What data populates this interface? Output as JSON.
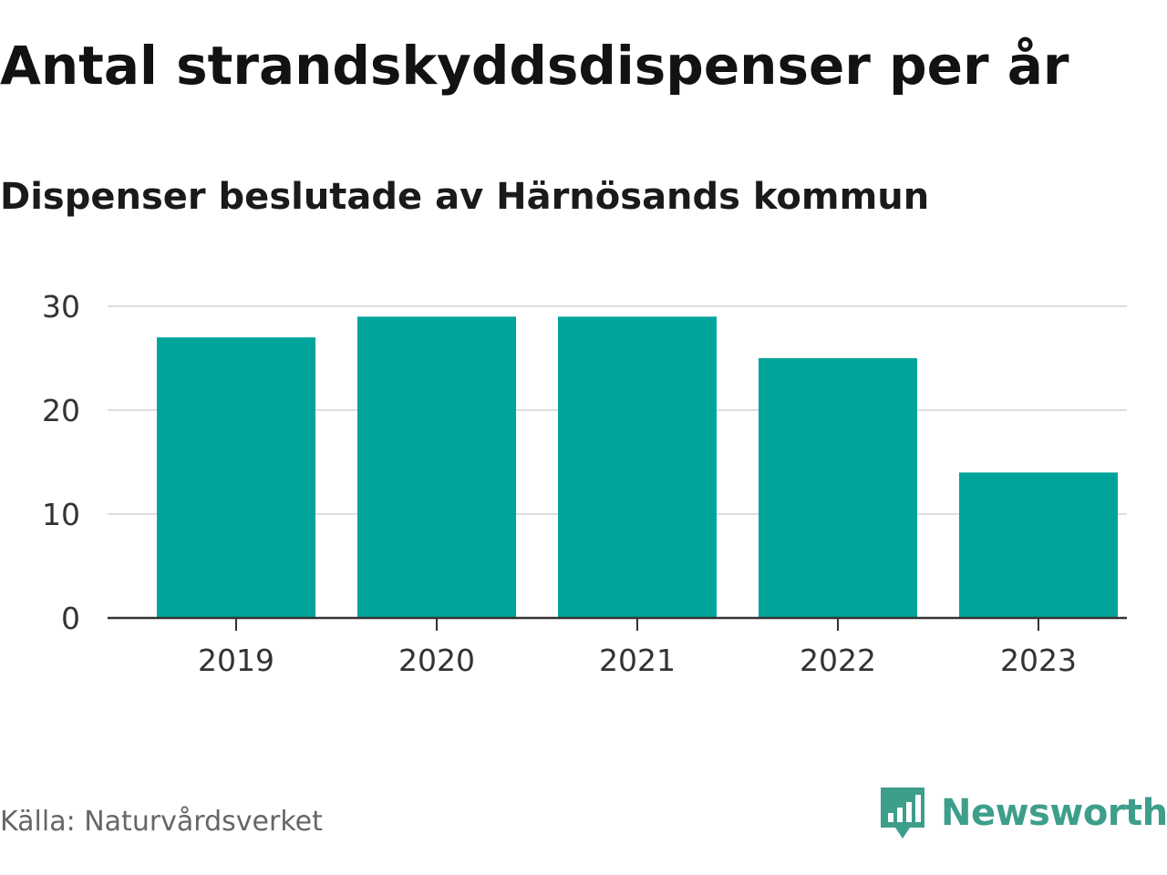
{
  "header": {
    "title": "Antal strandskyddsdispenser per år",
    "subtitle": "Dispenser beslutade av Härnösands kommun"
  },
  "footer": {
    "source": "Källa: Naturvårdsverket",
    "brand": "Newsworthy",
    "brand_icon": "newsworthy-logo-icon",
    "brand_color": "#3e9e8c"
  },
  "colors": {
    "bar": "#00a49a",
    "grid": "#dddddd",
    "axis": "#333333"
  },
  "chart_data": {
    "type": "bar",
    "title": "Antal strandskyddsdispenser per år",
    "subtitle": "Dispenser beslutade av Härnösands kommun",
    "xlabel": "",
    "ylabel": "",
    "categories": [
      "2019",
      "2020",
      "2021",
      "2022",
      "2023"
    ],
    "values": [
      27,
      29,
      29,
      25,
      14
    ],
    "ylim": [
      0,
      30
    ],
    "yticks": [
      0,
      10,
      20,
      30
    ],
    "grid": true,
    "legend": "none"
  }
}
